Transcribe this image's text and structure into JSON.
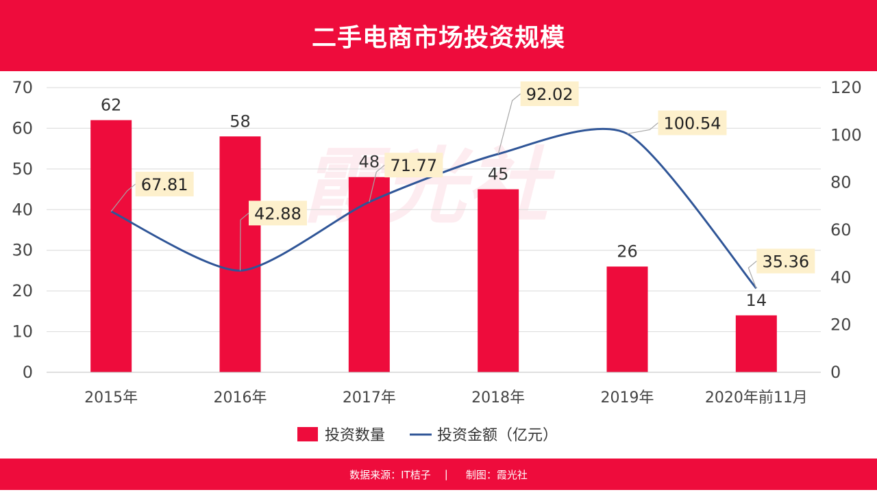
{
  "header": {
    "title": "二手电商市场投资规模"
  },
  "footer": {
    "source": "数据来源：IT桔子",
    "separator": "|",
    "credit": "制图：霞光社"
  },
  "watermark": "霞光社",
  "colors": {
    "brand": "#ee0c3c",
    "bar": "#ee0c3c",
    "line": "#2f5597",
    "label_box": "#fdf0cc",
    "grid": "#d9d9d9"
  },
  "chart_data": {
    "type": "bar",
    "categories": [
      "2015年",
      "2016年",
      "2017年",
      "2018年",
      "2019年",
      "2020年前11月"
    ],
    "series": [
      {
        "name": "投资数量",
        "type": "bar",
        "axis": "left",
        "values": [
          62,
          58,
          48,
          45,
          26,
          14
        ]
      },
      {
        "name": "投资金额（亿元）",
        "type": "line",
        "axis": "right",
        "values": [
          67.81,
          42.88,
          71.77,
          92.02,
          100.54,
          35.36
        ]
      }
    ],
    "y_left": {
      "min": 0,
      "max": 70,
      "ticks": [
        0,
        10,
        20,
        30,
        40,
        50,
        60,
        70
      ]
    },
    "y_right": {
      "min": 0,
      "max": 120,
      "ticks": [
        0,
        20,
        40,
        60,
        80,
        100,
        120
      ]
    },
    "bar_labels": [
      "62",
      "58",
      "48",
      "45",
      "26",
      "14"
    ],
    "line_labels": [
      "67.81",
      "42.88",
      "71.77",
      "92.02",
      "100.54",
      "35.36"
    ],
    "grid": true,
    "legend_position": "bottom"
  }
}
